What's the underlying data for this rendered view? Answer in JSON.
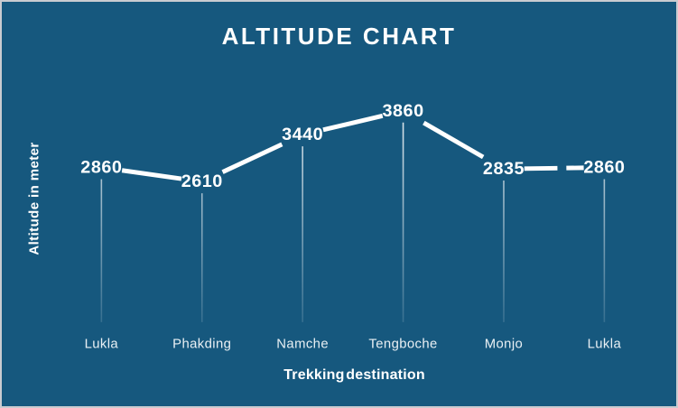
{
  "chart_data": {
    "type": "line",
    "title": "ALTITUDE CHART",
    "xlabel": "Trekking destination",
    "ylabel": "Altitude in meter",
    "categories": [
      "Lukla",
      "Phakding",
      "Namche",
      "Tengboche",
      "Monjo",
      "Lukla"
    ],
    "series": [
      {
        "name": "Altitude",
        "values": [
          2860,
          2610,
          3440,
          3860,
          2835,
          2860
        ]
      }
    ],
    "value_labels": [
      "2860",
      "2610",
      "3440",
      "3860",
      "2835",
      "2860"
    ],
    "ylim": [
      2610,
      3860
    ],
    "grid": false,
    "legend": "none",
    "marker_style": "value-label-with-drop-line",
    "colors": {
      "background": "#16587e",
      "border": "#c9ccd0",
      "line": "#ffffff",
      "label_text": "#ffffff",
      "category_text": "#e9f0f4",
      "drop_line": "#ffffff"
    }
  }
}
